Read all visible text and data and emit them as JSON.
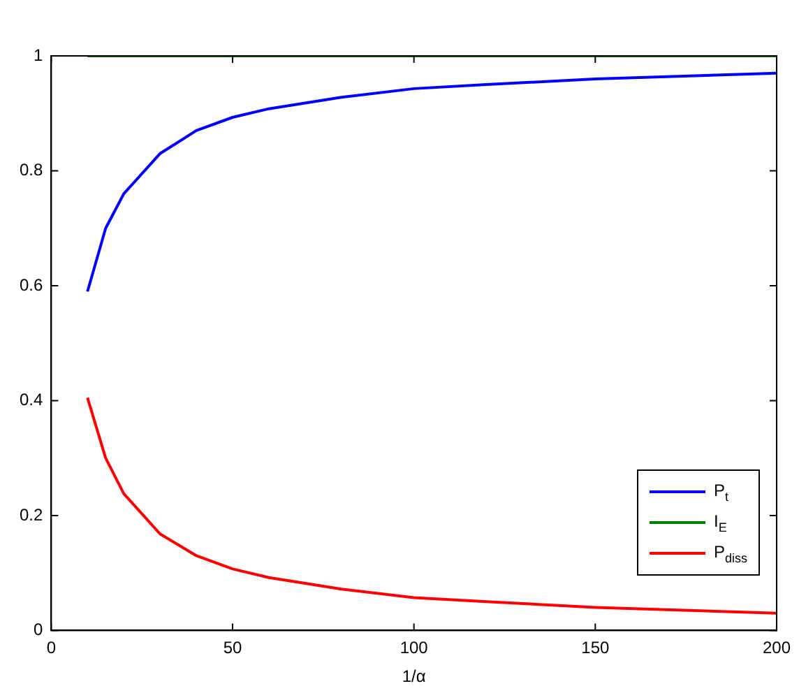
{
  "chart_data": {
    "type": "line",
    "xlabel": "1/α",
    "xlim": [
      0,
      200
    ],
    "xticks": [
      0,
      50,
      100,
      150,
      200
    ],
    "ylim": [
      0,
      1
    ],
    "yticks": [
      0,
      0.2,
      0.4,
      0.6,
      0.8,
      1
    ],
    "grid": false,
    "legend": "bottom right",
    "marker": "none",
    "line_style": "solid",
    "x": [
      10,
      15,
      20,
      30,
      40,
      50,
      60,
      80,
      100,
      120,
      150,
      200
    ],
    "series": [
      {
        "name": "P$_{t}$",
        "color": "#0000ff",
        "values": [
          0.59,
          0.7,
          0.76,
          0.83,
          0.87,
          0.893,
          0.908,
          0.928,
          0.943,
          0.95,
          0.96,
          0.97
        ]
      },
      {
        "name": "I$_{E}$",
        "color": "#008000",
        "values": [
          1,
          1,
          1,
          1,
          1,
          1,
          1,
          1,
          1,
          1,
          1,
          1
        ]
      },
      {
        "name": "P$_{diss}$",
        "color": "#ff0000",
        "values": [
          0.405,
          0.3,
          0.238,
          0.168,
          0.13,
          0.107,
          0.092,
          0.072,
          0.057,
          0.05,
          0.04,
          0.03
        ]
      }
    ]
  }
}
